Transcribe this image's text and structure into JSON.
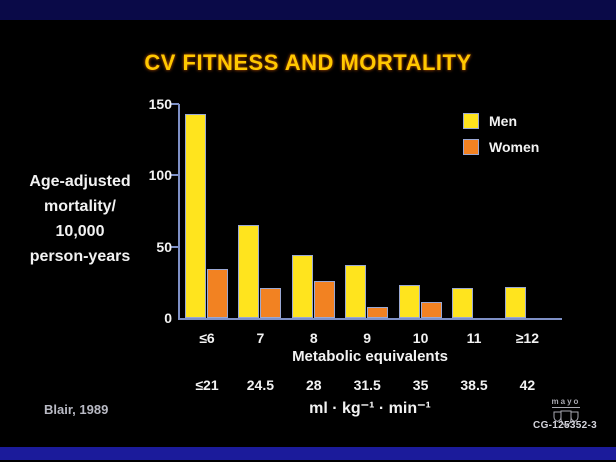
{
  "title": "CV FITNESS AND MORTALITY",
  "citation": "Blair, 1989",
  "slide_code": "CG-125352-3",
  "logo_text": "mayo",
  "colors": {
    "background": "#000000",
    "top_band": "#0a0a48",
    "bottom_band": "#1b1b9b",
    "title": "#ffc800",
    "axis": "#7e90c6",
    "bar_border": "#9aa8d4",
    "men": "#ffe41e",
    "women": "#f28222",
    "text": "#f2f2f2"
  },
  "chart_data": {
    "type": "bar",
    "title": "CV FITNESS AND MORTALITY",
    "ylabel": "Age-adjusted\nmortality/\n10,000\nperson-years",
    "xlabel": "Metabolic equivalents",
    "xlabel_secondary": "ml · kg⁻¹ · min⁻¹",
    "categories": [
      "≤6",
      "7",
      "8",
      "9",
      "10",
      "11",
      "≥12"
    ],
    "categories_secondary": [
      "≤21",
      "24.5",
      "28",
      "31.5",
      "35",
      "38.5",
      "42"
    ],
    "series": [
      {
        "name": "Men",
        "color": "#ffe41e",
        "values": [
          143,
          65,
          44,
          37,
          23,
          21,
          22
        ]
      },
      {
        "name": "Women",
        "color": "#f28222",
        "values": [
          34,
          21,
          26,
          8,
          11,
          null,
          null
        ]
      }
    ],
    "yticks": [
      0,
      50,
      100,
      150
    ],
    "ylim": [
      0,
      150
    ],
    "grid": false,
    "legend_position": "upper right"
  }
}
